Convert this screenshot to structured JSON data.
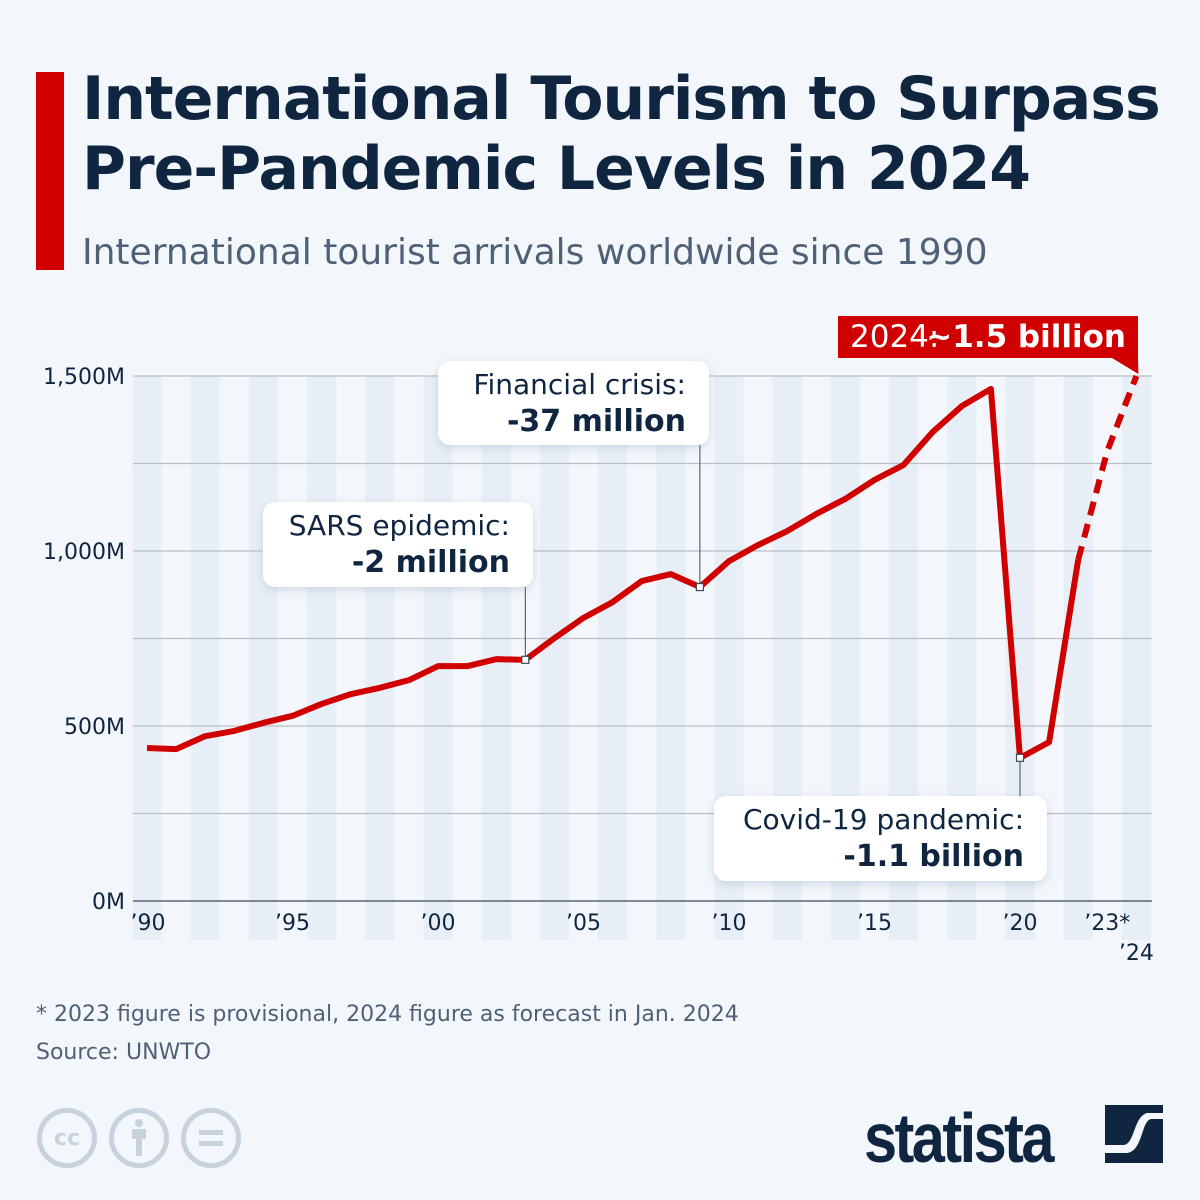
{
  "header": {
    "title": "International Tourism to Surpass Pre-Pandemic Levels in 2024",
    "subtitle": "International tourist arrivals worldwide since 1990"
  },
  "footer": {
    "note": "* 2023 figure is provisional, 2024 figure as forecast in Jan. 2024",
    "source": "Source: UNWTO",
    "logo": "statista",
    "license_icons": [
      "cc-icon",
      "attribution-icon",
      "no-derivatives-icon"
    ]
  },
  "colors": {
    "line": "#d00000",
    "text": "#0f2540",
    "stripe": "#e8eef6",
    "grid": "#b9bfc6"
  },
  "chart_data": {
    "type": "line",
    "title": "",
    "xlabel": "",
    "ylabel": "",
    "ylim": [
      0,
      1500
    ],
    "yticks": [
      0,
      250,
      500,
      750,
      1000,
      1250,
      1500
    ],
    "ytick_labels": {
      "0": "0M",
      "500": "500M",
      "1000": "1,000M",
      "1500": "1,500M"
    },
    "xtick_labels": [
      {
        "year": 1990,
        "label": "’90"
      },
      {
        "year": 1995,
        "label": "’95"
      },
      {
        "year": 2000,
        "label": "’00"
      },
      {
        "year": 2005,
        "label": "’05"
      },
      {
        "year": 2010,
        "label": "’10"
      },
      {
        "year": 2015,
        "label": "’15"
      },
      {
        "year": 2020,
        "label": "’20"
      },
      {
        "year": 2023,
        "label": "’23*"
      },
      {
        "year": 2024,
        "label": "’24"
      }
    ],
    "grid": true,
    "unit": "million arrivals",
    "x": [
      1990,
      1991,
      1992,
      1993,
      1994,
      1995,
      1996,
      1997,
      1998,
      1999,
      2000,
      2001,
      2002,
      2003,
      2004,
      2005,
      2006,
      2007,
      2008,
      2009,
      2010,
      2011,
      2012,
      2013,
      2014,
      2015,
      2016,
      2017,
      2018,
      2019,
      2020,
      2021,
      2022,
      2023,
      2024
    ],
    "values": [
      437,
      434,
      471,
      486,
      509,
      529,
      563,
      591,
      609,
      631,
      671,
      671,
      691,
      689,
      751,
      809,
      854,
      914,
      934,
      897,
      971,
      1017,
      1057,
      1106,
      1149,
      1203,
      1246,
      1340,
      1414,
      1463,
      409,
      454,
      975,
      1286,
      1500
    ],
    "dashed_from": 2022,
    "annotations": [
      {
        "id": "sars",
        "year": 2003,
        "line1": "SARS epidemic:",
        "line2": "-2 million"
      },
      {
        "id": "financial",
        "year": 2009,
        "line1": "Financial crisis:",
        "line2": "-37 million"
      },
      {
        "id": "covid",
        "year": 2020,
        "line1": "Covid-19 pandemic:",
        "line2": "-1.1 billion"
      }
    ],
    "forecast_label": {
      "year": 2024,
      "prefix": "2024:",
      "value": "~1.5 billion"
    }
  }
}
